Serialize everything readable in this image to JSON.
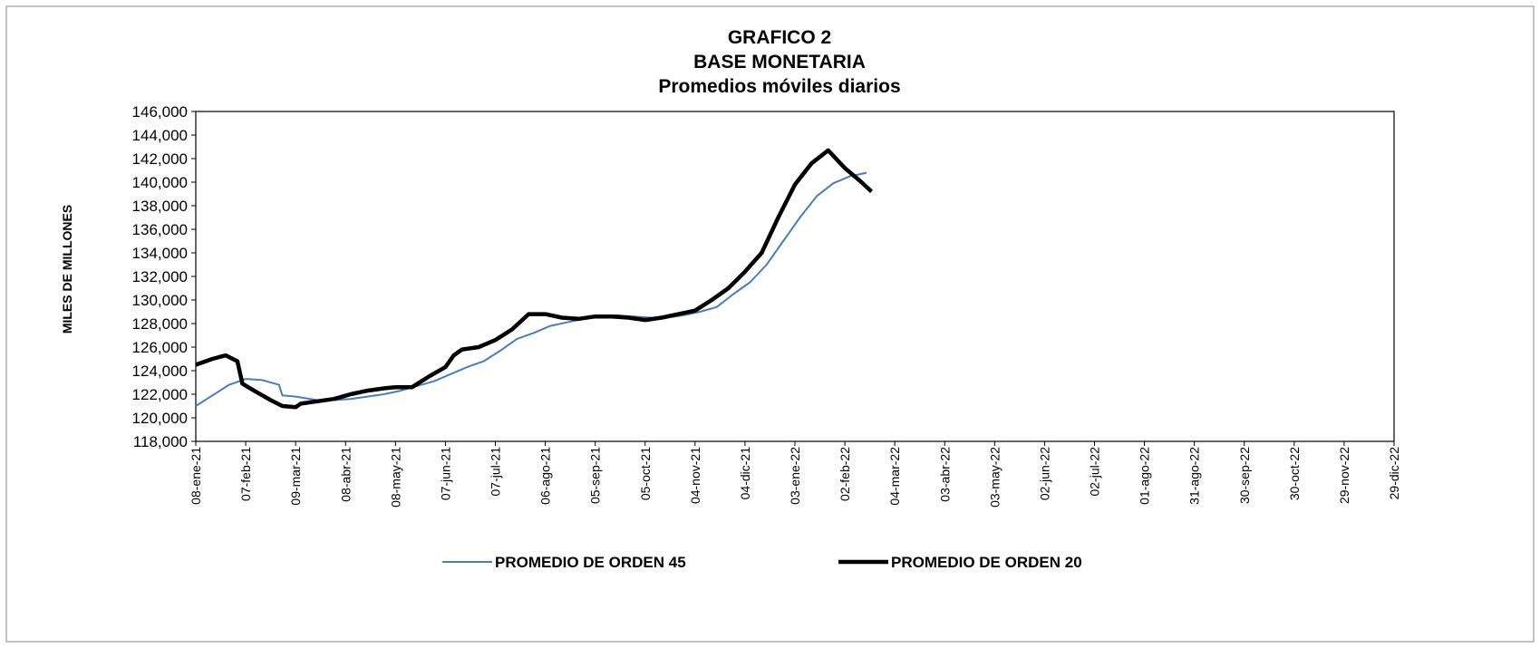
{
  "chart_data": {
    "type": "line",
    "title": "GRAFICO 2",
    "subtitle": [
      "BASE MONETARIA",
      "Promedios móviles diarios"
    ],
    "y_label": "MILES DE MILLONES",
    "xlim": [
      "2021-01-08",
      "2022-12-29"
    ],
    "xticks": [
      {
        "value": "2021-01-08",
        "label": "08-ene-21"
      },
      {
        "value": "2021-02-07",
        "label": "07-feb-21"
      },
      {
        "value": "2021-03-09",
        "label": "09-mar-21"
      },
      {
        "value": "2021-04-08",
        "label": "08-abr-21"
      },
      {
        "value": "2021-05-08",
        "label": "08-may-21"
      },
      {
        "value": "2021-06-07",
        "label": "07-jun-21"
      },
      {
        "value": "2021-07-07",
        "label": "07-jul-21"
      },
      {
        "value": "2021-08-06",
        "label": "06-ago-21"
      },
      {
        "value": "2021-09-05",
        "label": "05-sep-21"
      },
      {
        "value": "2021-10-05",
        "label": "05-oct-21"
      },
      {
        "value": "2021-11-04",
        "label": "04-nov-21"
      },
      {
        "value": "2021-12-04",
        "label": "04-dic-21"
      },
      {
        "value": "2022-01-03",
        "label": "03-ene-22"
      },
      {
        "value": "2022-02-02",
        "label": "02-feb-22"
      },
      {
        "value": "2022-03-04",
        "label": "04-mar-22"
      },
      {
        "value": "2022-04-03",
        "label": "03-abr-22"
      },
      {
        "value": "2022-05-03",
        "label": "03-may-22"
      },
      {
        "value": "2022-06-02",
        "label": "02-jun-22"
      },
      {
        "value": "2022-07-02",
        "label": "02-jul-22"
      },
      {
        "value": "2022-08-01",
        "label": "01-ago-22"
      },
      {
        "value": "2022-08-31",
        "label": "31-ago-22"
      },
      {
        "value": "2022-09-30",
        "label": "30-sep-22"
      },
      {
        "value": "2022-10-30",
        "label": "30-oct-22"
      },
      {
        "value": "2022-11-29",
        "label": "29-nov-22"
      },
      {
        "value": "2022-12-29",
        "label": "29-dic-22"
      }
    ],
    "ylim": [
      118000,
      146000
    ],
    "yticks": [
      {
        "value": 118000,
        "label": "118,000"
      },
      {
        "value": 120000,
        "label": "120,000"
      },
      {
        "value": 122000,
        "label": "122,000"
      },
      {
        "value": 124000,
        "label": "124,000"
      },
      {
        "value": 126000,
        "label": "126,000"
      },
      {
        "value": 128000,
        "label": "128,000"
      },
      {
        "value": 130000,
        "label": "130,000"
      },
      {
        "value": 132000,
        "label": "132,000"
      },
      {
        "value": 134000,
        "label": "134,000"
      },
      {
        "value": 136000,
        "label": "136,000"
      },
      {
        "value": 138000,
        "label": "138,000"
      },
      {
        "value": 140000,
        "label": "140,000"
      },
      {
        "value": 142000,
        "label": "142,000"
      },
      {
        "value": 144000,
        "label": "144,000"
      },
      {
        "value": 146000,
        "label": "146,000"
      }
    ],
    "series": [
      {
        "name": "PROMEDIO DE ORDEN 45",
        "color": "#4a7ebb",
        "width": 2,
        "x": [
          "2021-01-08",
          "2021-01-18",
          "2021-01-28",
          "2021-02-07",
          "2021-02-17",
          "2021-02-27",
          "2021-03-01",
          "2021-03-09",
          "2021-03-22",
          "2021-04-01",
          "2021-04-11",
          "2021-04-21",
          "2021-05-01",
          "2021-05-11",
          "2021-05-21",
          "2021-05-31",
          "2021-06-10",
          "2021-06-20",
          "2021-06-30",
          "2021-07-10",
          "2021-07-20",
          "2021-07-30",
          "2021-08-09",
          "2021-08-19",
          "2021-08-29",
          "2021-09-08",
          "2021-09-18",
          "2021-09-28",
          "2021-10-08",
          "2021-10-18",
          "2021-10-28",
          "2021-11-07",
          "2021-11-17",
          "2021-11-27",
          "2021-12-07",
          "2021-12-17",
          "2021-12-27",
          "2022-01-06",
          "2022-01-16",
          "2022-01-26",
          "2022-02-05",
          "2022-02-15"
        ],
        "values": [
          121000,
          121900,
          122800,
          123300,
          123200,
          122800,
          121900,
          121800,
          121500,
          121500,
          121600,
          121800,
          122000,
          122300,
          122700,
          123100,
          123700,
          124300,
          124800,
          125700,
          126700,
          127200,
          127800,
          128100,
          128400,
          128600,
          128700,
          128600,
          128500,
          128500,
          128700,
          129000,
          129400,
          130500,
          131500,
          133000,
          135000,
          137000,
          138800,
          139900,
          140500,
          140800
        ]
      },
      {
        "name": "PROMEDIO DE ORDEN 20",
        "color": "#000000",
        "width": 4.5,
        "x": [
          "2021-01-08",
          "2021-01-18",
          "2021-01-26",
          "2021-02-02",
          "2021-02-05",
          "2021-02-12",
          "2021-02-22",
          "2021-03-01",
          "2021-03-09",
          "2021-03-12",
          "2021-03-22",
          "2021-04-01",
          "2021-04-11",
          "2021-04-21",
          "2021-05-01",
          "2021-05-08",
          "2021-05-18",
          "2021-05-28",
          "2021-06-07",
          "2021-06-12",
          "2021-06-17",
          "2021-06-27",
          "2021-07-07",
          "2021-07-17",
          "2021-07-27",
          "2021-08-06",
          "2021-08-16",
          "2021-08-26",
          "2021-09-05",
          "2021-09-15",
          "2021-09-25",
          "2021-10-05",
          "2021-10-15",
          "2021-10-25",
          "2021-11-04",
          "2021-11-14",
          "2021-11-24",
          "2021-12-04",
          "2021-12-14",
          "2021-12-24",
          "2022-01-03",
          "2022-01-13",
          "2022-01-23",
          "2022-02-02",
          "2022-02-12",
          "2022-02-18"
        ],
        "values": [
          124500,
          125000,
          125300,
          124800,
          122900,
          122300,
          121500,
          121000,
          120900,
          121200,
          121400,
          121600,
          122000,
          122300,
          122500,
          122600,
          122600,
          123500,
          124300,
          125300,
          125800,
          126000,
          126600,
          127500,
          128800,
          128800,
          128500,
          128400,
          128600,
          128600,
          128500,
          128300,
          128500,
          128800,
          129100,
          130000,
          131000,
          132400,
          134000,
          137000,
          139800,
          141600,
          142700,
          141200,
          140000,
          139200
        ]
      }
    ]
  }
}
